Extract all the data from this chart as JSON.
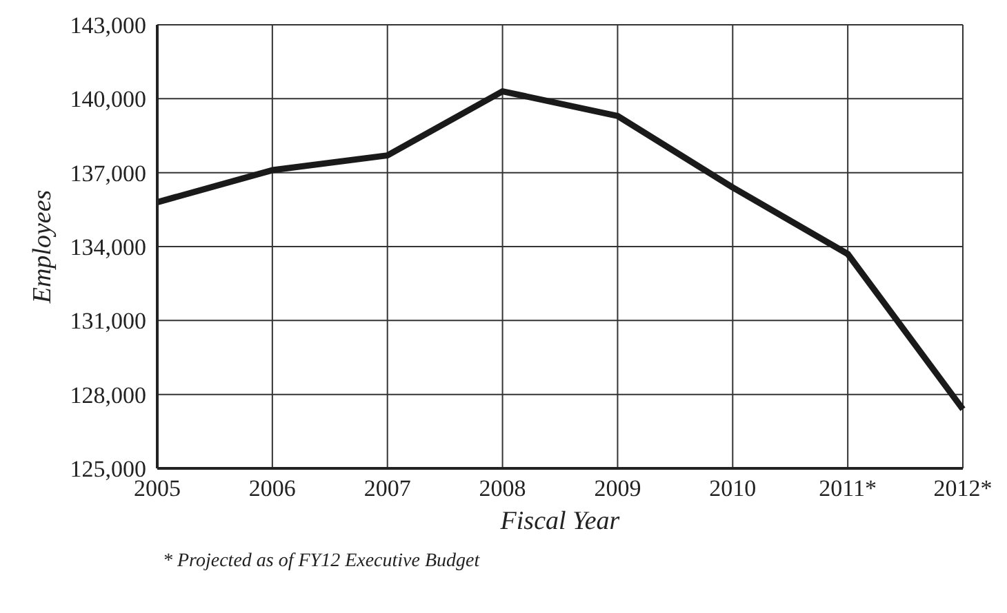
{
  "chart_data": {
    "type": "line",
    "xlabel": "Fiscal Year",
    "ylabel": "Employees",
    "categories": [
      "2005",
      "2006",
      "2007",
      "2008",
      "2009",
      "2010",
      "2011*",
      "2012*"
    ],
    "series": [
      {
        "color": "#1a1a1a",
        "values": [
          135800,
          137100,
          137700,
          140300,
          139300,
          136400,
          133700,
          127400
        ]
      }
    ],
    "ylim": [
      125000,
      143000
    ],
    "yticks": [
      {
        "value": 125000,
        "label": "125,000"
      },
      {
        "value": 128000,
        "label": "128,000"
      },
      {
        "value": 131000,
        "label": "131,000"
      },
      {
        "value": 134000,
        "label": "134,000"
      },
      {
        "value": 137000,
        "label": "137,000"
      },
      {
        "value": 140000,
        "label": "140,000"
      },
      {
        "value": 143000,
        "label": "143,000"
      }
    ],
    "grid": true,
    "legend": false,
    "marker": "none",
    "line_style": "solid",
    "annotations": [
      "*  Projected as of FY12 Executive Budget"
    ]
  }
}
